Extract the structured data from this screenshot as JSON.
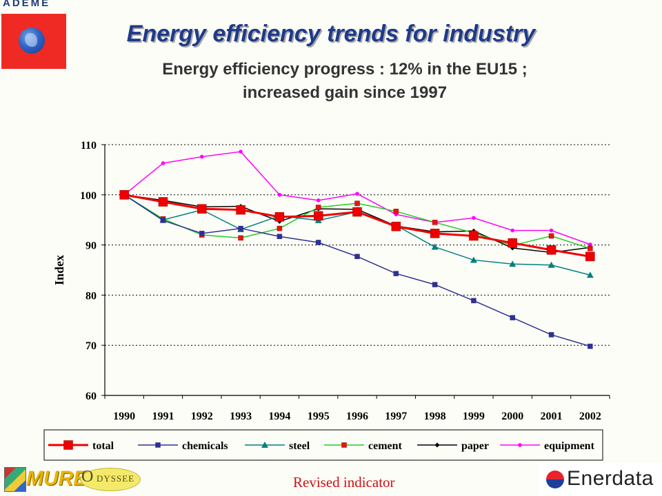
{
  "header": {
    "logo_text": "ADEME",
    "title": "Energy efficiency trends for industry",
    "subtitle": "Energy efficiency progress : 12% in the EU15 ;\nincreased gain since 1997"
  },
  "footer": {
    "note": "Revised indicator",
    "logo_left_word": "MURE",
    "logo_left_sub": "DYSSEE",
    "logo_left_initial": "O",
    "logo_right_word": "Enerdata"
  },
  "chart_data": {
    "type": "line",
    "title": "",
    "xlabel": "",
    "ylabel": "Index",
    "ylim": [
      60,
      110
    ],
    "yticks": [
      60,
      70,
      80,
      90,
      100,
      110
    ],
    "grid": "horizontal dotted",
    "legend_position": "bottom",
    "categories": [
      "1990",
      "1991",
      "1992",
      "1993",
      "1994",
      "1995",
      "1996",
      "1997",
      "1998",
      "1999",
      "2000",
      "2001",
      "2002"
    ],
    "series": [
      {
        "name": "total",
        "color": "#ee0000",
        "marker": "square",
        "size": "large",
        "values": [
          100,
          98.6,
          97.2,
          97.0,
          95.6,
          95.8,
          96.6,
          93.7,
          92.3,
          91.8,
          90.4,
          89.0,
          87.7
        ]
      },
      {
        "name": "chemicals",
        "color": "#2e3192",
        "marker": "square",
        "values": [
          100,
          94.9,
          92.3,
          93.3,
          91.7,
          90.5,
          87.7,
          84.3,
          82.1,
          78.9,
          75.5,
          72.1,
          69.8
        ]
      },
      {
        "name": "steel",
        "color": "#008080",
        "marker": "triangle",
        "values": [
          100,
          95.0,
          97.0,
          93.1,
          95.8,
          94.9,
          96.6,
          93.9,
          89.6,
          87.0,
          86.2,
          86.0,
          84.0
        ]
      },
      {
        "name": "cement",
        "color": "#22cc22",
        "marker": "square-red",
        "values": [
          100,
          95.2,
          92.0,
          91.4,
          93.3,
          97.5,
          98.3,
          96.7,
          94.5,
          92.4,
          89.9,
          91.8,
          89.3
        ]
      },
      {
        "name": "paper",
        "color": "#000000",
        "marker": "diamond",
        "values": [
          100,
          98.9,
          97.6,
          97.7,
          94.7,
          97.2,
          97.1,
          93.8,
          92.6,
          92.8,
          89.4,
          88.5,
          89.5
        ]
      },
      {
        "name": "equipment",
        "color": "#ff00ff",
        "marker": "circle",
        "values": [
          100,
          106.3,
          107.6,
          108.6,
          100.0,
          98.9,
          100.2,
          96.1,
          94.5,
          95.4,
          92.9,
          92.9,
          90.1
        ]
      }
    ]
  }
}
